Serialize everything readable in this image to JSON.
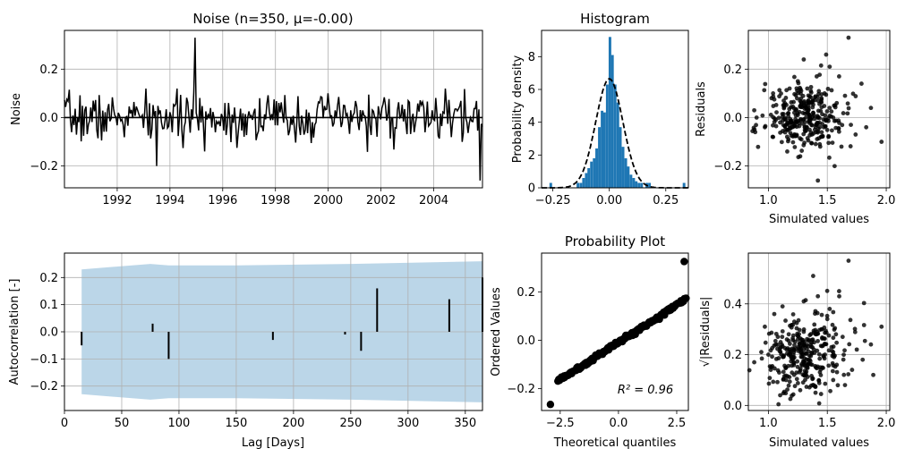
{
  "chart_data": [
    {
      "id": "noise",
      "type": "line",
      "title": "Noise (n=350, μ=-0.00)",
      "xlabel": "",
      "ylabel": "Noise",
      "xlim": [
        1990.0,
        2005.85
      ],
      "ylim": [
        -0.29,
        0.36
      ],
      "xticks": [
        1992,
        1994,
        1996,
        1998,
        2000,
        2002,
        2004
      ],
      "yticks": [
        -0.2,
        0.0,
        0.2
      ],
      "ytick_labels": [
        "−0.2",
        "0.0",
        "0.2"
      ],
      "grid": true,
      "zero_line": 0,
      "n": 350
    },
    {
      "id": "histogram",
      "type": "bar",
      "title": "Histogram",
      "xlabel": "",
      "ylabel": "Probability density",
      "xlim": [
        -0.3,
        0.35
      ],
      "ylim": [
        0,
        9.6
      ],
      "xticks": [
        -0.25,
        0.0,
        0.25
      ],
      "xtick_labels": [
        "−0.25",
        "0.00",
        "0.25"
      ],
      "yticks": [
        0,
        2,
        4,
        6,
        8
      ],
      "bin_width": 0.0117,
      "bins": [
        [
          -0.265,
          0.3
        ],
        [
          -0.145,
          0.3
        ],
        [
          -0.132,
          0.3
        ],
        [
          -0.12,
          0.6
        ],
        [
          -0.108,
          0.9
        ],
        [
          -0.097,
          1.2
        ],
        [
          -0.085,
          1.6
        ],
        [
          -0.073,
          1.8
        ],
        [
          -0.062,
          2.4
        ],
        [
          -0.05,
          3.7
        ],
        [
          -0.038,
          4.7
        ],
        [
          -0.027,
          4.6
        ],
        [
          -0.015,
          6.3
        ],
        [
          -0.003,
          9.2
        ],
        [
          0.008,
          8.1
        ],
        [
          0.02,
          6.3
        ],
        [
          0.032,
          5.2
        ],
        [
          0.043,
          3.7
        ],
        [
          0.055,
          2.5
        ],
        [
          0.067,
          1.8
        ],
        [
          0.078,
          1.3
        ],
        [
          0.09,
          0.8
        ],
        [
          0.102,
          0.6
        ],
        [
          0.113,
          0.4
        ],
        [
          0.125,
          0.3
        ],
        [
          0.137,
          0.3
        ],
        [
          0.16,
          0.3
        ],
        [
          0.172,
          0.3
        ],
        [
          0.325,
          0.3
        ]
      ],
      "fit": {
        "mu": -0.0,
        "sigma": 0.06,
        "style": "dashed"
      }
    },
    {
      "id": "residuals",
      "type": "scatter",
      "title": "",
      "xlabel": "Simulated values",
      "ylabel": "Residuals",
      "xlim": [
        0.83,
        2.03
      ],
      "ylim": [
        -0.29,
        0.36
      ],
      "xticks": [
        1.0,
        1.5,
        2.0
      ],
      "yticks": [
        -0.2,
        0.0,
        0.2
      ],
      "ytick_labels": [
        "−0.2",
        "0.0",
        "0.2"
      ],
      "grid": true,
      "points": [
        [
          1.68,
          0.33
        ],
        [
          1.49,
          0.26
        ],
        [
          1.3,
          0.24
        ],
        [
          1.52,
          0.21
        ],
        [
          1.41,
          0.17
        ],
        [
          1.33,
          0.12
        ],
        [
          1.25,
          0.15
        ],
        [
          1.6,
          0.17
        ],
        [
          1.79,
          0.14
        ],
        [
          1.87,
          0.04
        ],
        [
          1.65,
          0.09
        ],
        [
          1.45,
          0.08
        ],
        [
          1.04,
          0.1
        ],
        [
          1.13,
          0.07
        ],
        [
          1.22,
          0.02
        ],
        [
          1.35,
          -0.05
        ],
        [
          1.51,
          -0.08
        ],
        [
          1.62,
          -0.12
        ],
        [
          1.7,
          -0.03
        ],
        [
          1.96,
          -0.1
        ],
        [
          1.42,
          -0.26
        ],
        [
          1.27,
          -0.16
        ],
        [
          1.16,
          -0.14
        ],
        [
          1.04,
          -0.08
        ],
        [
          0.9,
          0.0
        ],
        [
          0.88,
          0.03
        ],
        [
          1.55,
          0.0
        ],
        [
          1.38,
          0.02
        ],
        [
          1.2,
          -0.04
        ],
        [
          1.1,
          -0.02
        ],
        [
          1.3,
          0.05
        ],
        [
          1.47,
          -0.04
        ],
        [
          1.58,
          0.06
        ],
        [
          1.74,
          -0.07
        ],
        [
          1.83,
          -0.04
        ],
        [
          1.28,
          -0.09
        ],
        [
          1.36,
          0.11
        ],
        [
          1.44,
          -0.12
        ],
        [
          1.18,
          0.12
        ],
        [
          0.97,
          -0.04
        ]
      ]
    },
    {
      "id": "autocorrelation",
      "type": "bar",
      "title": "",
      "xlabel": "Lag [Days]",
      "ylabel": "Autocorrelation [-]",
      "xlim": [
        0,
        365
      ],
      "ylim": [
        -0.29,
        0.29
      ],
      "xticks": [
        0,
        50,
        100,
        150,
        200,
        250,
        300,
        350
      ],
      "yticks": [
        -0.2,
        -0.1,
        0.0,
        0.1,
        0.2
      ],
      "ytick_labels": [
        "−0.2",
        "−0.1",
        "0.0",
        "0.1",
        "0.2"
      ],
      "grid": true,
      "bars": [
        [
          15,
          -0.05
        ],
        [
          77,
          0.03
        ],
        [
          91,
          -0.1
        ],
        [
          182,
          -0.03
        ],
        [
          245,
          -0.01
        ],
        [
          259,
          -0.07
        ],
        [
          273,
          0.16
        ],
        [
          336,
          0.12
        ],
        [
          365,
          0.2
        ]
      ],
      "confidence_band": {
        "lags": [
          15,
          75,
          91,
          150,
          250,
          365
        ],
        "upper": [
          0.23,
          0.25,
          0.245,
          0.245,
          0.25,
          0.26
        ],
        "lower": [
          -0.23,
          -0.25,
          -0.245,
          -0.245,
          -0.25,
          -0.26
        ]
      }
    },
    {
      "id": "probability-plot",
      "type": "scatter",
      "title": "Probability Plot",
      "xlabel": "Theoretical quantiles",
      "ylabel": "Ordered Values",
      "xlim": [
        -3.3,
        3.0
      ],
      "ylim": [
        -0.29,
        0.36
      ],
      "xticks": [
        -2.5,
        0.0,
        2.5
      ],
      "xtick_labels": [
        "−2.5",
        "0.0",
        "2.5"
      ],
      "yticks": [
        -0.2,
        0.0,
        0.2
      ],
      "ytick_labels": [
        "−0.2",
        "0.0",
        "0.2"
      ],
      "grid": false,
      "outliers": [
        [
          -2.92,
          -0.265
        ],
        [
          2.82,
          0.325
        ]
      ],
      "fit_line": {
        "x": [
          -2.6,
          2.9
        ],
        "y": [
          -0.168,
          0.17
        ]
      },
      "annotation": "R² = 0.96"
    },
    {
      "id": "sqrt-residuals",
      "type": "scatter",
      "title": "",
      "xlabel": "Simulated values",
      "ylabel": "√|Residuals|",
      "xlim": [
        0.83,
        2.03
      ],
      "ylim": [
        -0.02,
        0.6
      ],
      "xticks": [
        1.0,
        1.5,
        2.0
      ],
      "yticks": [
        0.0,
        0.2,
        0.4
      ],
      "grid": true,
      "points": [
        [
          1.68,
          0.57
        ],
        [
          1.38,
          0.51
        ],
        [
          1.42,
          0.43
        ],
        [
          1.6,
          0.45
        ],
        [
          1.3,
          0.41
        ],
        [
          1.52,
          0.38
        ],
        [
          1.12,
          0.39
        ],
        [
          1.05,
          0.36
        ],
        [
          1.96,
          0.31
        ],
        [
          1.87,
          0.24
        ],
        [
          1.75,
          0.22
        ],
        [
          1.63,
          0.27
        ],
        [
          1.45,
          0.3
        ],
        [
          1.25,
          0.26
        ],
        [
          1.18,
          0.22
        ],
        [
          0.94,
          0.21
        ],
        [
          0.88,
          0.17
        ],
        [
          1.02,
          0.14
        ],
        [
          1.32,
          0.12
        ],
        [
          1.4,
          0.05
        ],
        [
          1.55,
          0.1
        ],
        [
          1.71,
          0.14
        ],
        [
          1.48,
          0.2
        ],
        [
          1.22,
          0.33
        ],
        [
          1.34,
          0.18
        ],
        [
          1.15,
          0.1
        ],
        [
          1.58,
          0.16
        ],
        [
          1.27,
          0.06
        ],
        [
          1.08,
          0.27
        ],
        [
          1.8,
          0.18
        ],
        [
          0.97,
          0.31
        ],
        [
          1.36,
          0.24
        ],
        [
          1.44,
          0.15
        ],
        [
          1.21,
          0.19
        ],
        [
          1.65,
          0.08
        ],
        [
          1.1,
          0.04
        ],
        [
          1.5,
          0.34
        ],
        [
          1.3,
          0.29
        ],
        [
          1.89,
          0.12
        ],
        [
          1.0,
          0.2
        ]
      ]
    }
  ]
}
